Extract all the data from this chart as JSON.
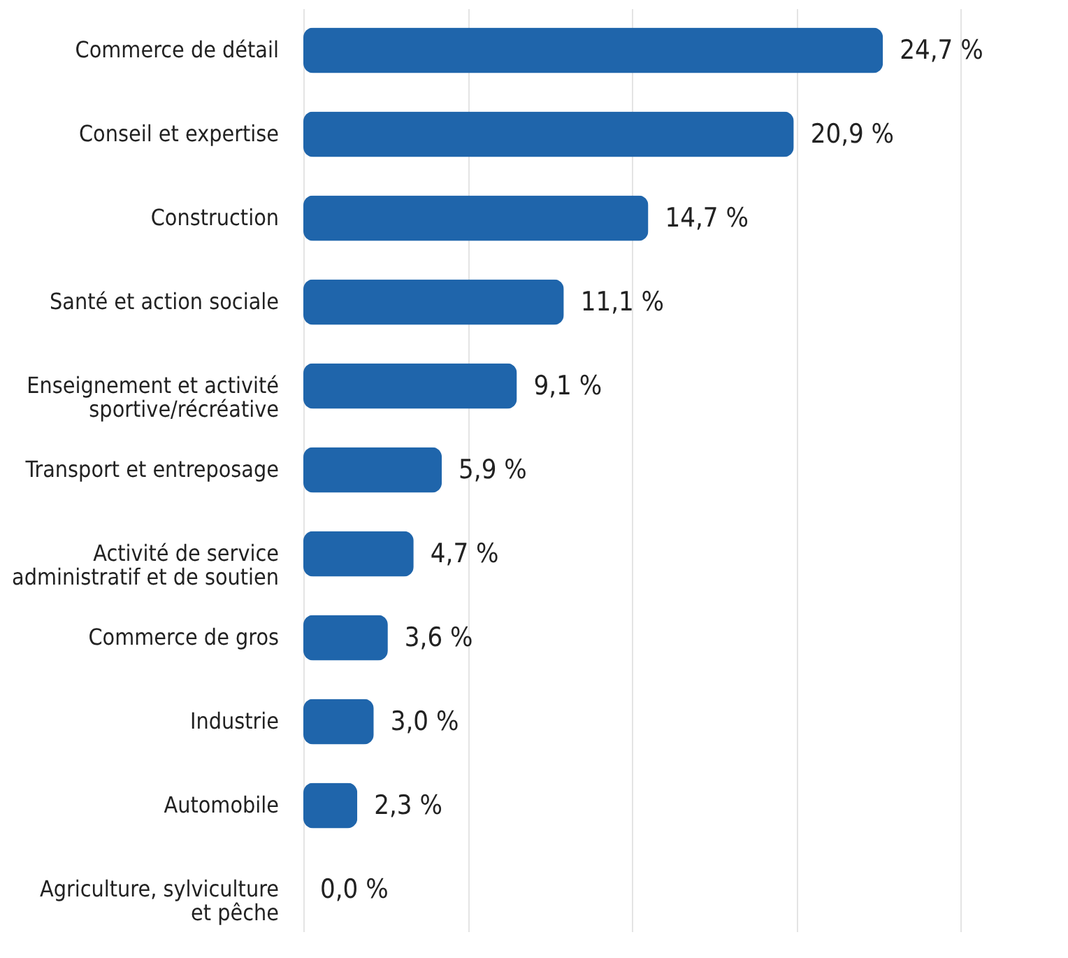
{
  "chart_data": {
    "type": "bar",
    "orientation": "horizontal",
    "categories": [
      "Commerce de détail",
      "Conseil et expertise",
      "Construction",
      "Santé et action sociale",
      "Enseignement et activité\nsportive/récréative",
      "Transport et entreposage",
      "Activité de service\nadministratif et de soutien",
      "Commerce de gros",
      "Industrie",
      "Automobile",
      "Agriculture, sylviculture\net pêche"
    ],
    "values": [
      24.7,
      20.9,
      14.7,
      11.1,
      9.1,
      5.9,
      4.7,
      3.6,
      3.0,
      2.3,
      0.0
    ],
    "value_labels": [
      "24,7 %",
      "20,9 %",
      "14,7 %",
      "11,1 %",
      "9,1 %",
      "5,9 %",
      "4,7 %",
      "3,6 %",
      "3,0 %",
      "2,3 %",
      "0,0 %"
    ],
    "color": "#1f65ab",
    "xlim": [
      0,
      28
    ],
    "xticks": [
      {
        "value": 0,
        "label": null
      },
      {
        "value": 7,
        "label": null
      },
      {
        "value": 14,
        "label": null
      },
      {
        "value": 21,
        "label": null
      },
      {
        "value": 28,
        "label": null
      }
    ],
    "grid": "x",
    "tick_labels": "y"
  }
}
